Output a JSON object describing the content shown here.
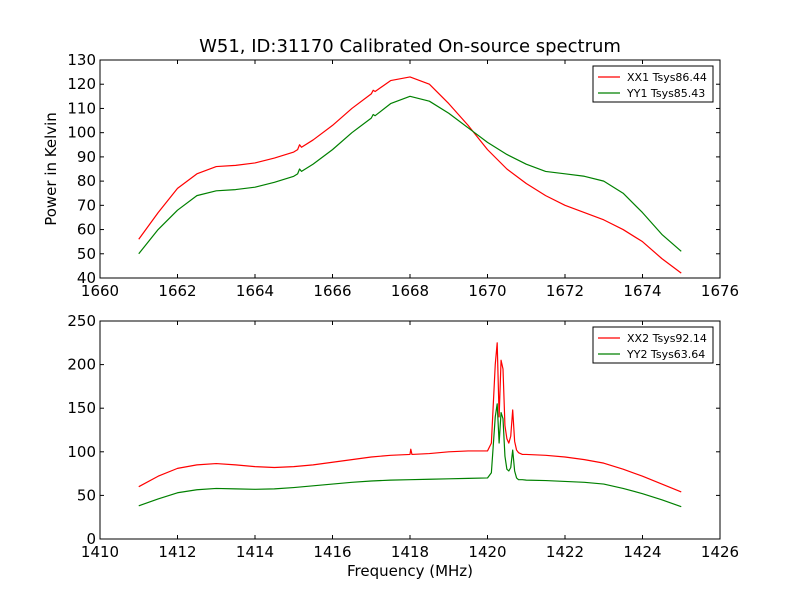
{
  "chart_data": [
    {
      "type": "line",
      "title": "W51, ID:31170 Calibrated On-source spectrum",
      "xlabel": "",
      "ylabel": "Power in Kelvin",
      "xlim": [
        1660,
        1676
      ],
      "ylim": [
        40,
        130
      ],
      "xticks": [
        1660,
        1662,
        1664,
        1666,
        1668,
        1670,
        1672,
        1674,
        1676
      ],
      "yticks": [
        40,
        50,
        60,
        70,
        80,
        90,
        100,
        110,
        120,
        130
      ],
      "grid": false,
      "legend_position": "top-right",
      "series": [
        {
          "name": "XX1 Tsys86.44",
          "color": "#ff0000",
          "x": [
            1661.0,
            1661.5,
            1662.0,
            1662.5,
            1663.0,
            1663.5,
            1664.0,
            1664.5,
            1665.0,
            1665.1,
            1665.15,
            1665.2,
            1665.5,
            1666.0,
            1666.5,
            1667.0,
            1667.05,
            1667.1,
            1667.5,
            1668.0,
            1668.5,
            1669.0,
            1669.5,
            1670.0,
            1670.5,
            1671.0,
            1671.5,
            1672.0,
            1672.5,
            1673.0,
            1673.5,
            1674.0,
            1674.5,
            1675.0
          ],
          "y": [
            56,
            67,
            77,
            83,
            86,
            86.5,
            87.5,
            89.5,
            92,
            93,
            95,
            94,
            97,
            103,
            110,
            116,
            117.5,
            117,
            121.5,
            123,
            120,
            112,
            103,
            93,
            85,
            79,
            74,
            70,
            67,
            64,
            60,
            55,
            48,
            42
          ]
        },
        {
          "name": "YY1 Tsys85.43",
          "color": "#008000",
          "x": [
            1661.0,
            1661.5,
            1662.0,
            1662.5,
            1663.0,
            1663.5,
            1664.0,
            1664.5,
            1665.0,
            1665.1,
            1665.15,
            1665.2,
            1665.5,
            1666.0,
            1666.5,
            1667.0,
            1667.05,
            1667.1,
            1667.5,
            1668.0,
            1668.5,
            1669.0,
            1669.5,
            1670.0,
            1670.5,
            1671.0,
            1671.5,
            1672.0,
            1672.5,
            1673.0,
            1673.5,
            1674.0,
            1674.5,
            1675.0
          ],
          "y": [
            50,
            60,
            68,
            74,
            76,
            76.5,
            77.5,
            79.5,
            82,
            83,
            85,
            84,
            87,
            93,
            100,
            106,
            107.5,
            107,
            112,
            115,
            113,
            108,
            102,
            96,
            91,
            87,
            84,
            83,
            82,
            80,
            75,
            67,
            58,
            51
          ]
        }
      ]
    },
    {
      "type": "line",
      "title": "",
      "xlabel": "Frequency (MHz)",
      "ylabel": "",
      "xlim": [
        1410,
        1426
      ],
      "ylim": [
        0,
        250
      ],
      "xticks": [
        1410,
        1412,
        1414,
        1416,
        1418,
        1420,
        1422,
        1424,
        1426
      ],
      "yticks": [
        0,
        50,
        100,
        150,
        200,
        250
      ],
      "grid": false,
      "legend_position": "top-right",
      "series": [
        {
          "name": "XX2 Tsys92.14",
          "color": "#ff0000",
          "x": [
            1411.0,
            1411.5,
            1412.0,
            1412.5,
            1413.0,
            1413.5,
            1414.0,
            1414.5,
            1415.0,
            1415.5,
            1416.0,
            1416.5,
            1417.0,
            1417.5,
            1418.0,
            1418.02,
            1418.05,
            1418.5,
            1419.0,
            1419.5,
            1420.0,
            1420.1,
            1420.2,
            1420.25,
            1420.3,
            1420.35,
            1420.4,
            1420.45,
            1420.5,
            1420.55,
            1420.6,
            1420.65,
            1420.7,
            1420.75,
            1420.8,
            1420.85,
            1420.9,
            1421.0,
            1421.5,
            1422.0,
            1422.5,
            1423.0,
            1423.5,
            1424.0,
            1424.5,
            1425.0
          ],
          "y": [
            60,
            72,
            81,
            85,
            86.5,
            85,
            83,
            82,
            83,
            85,
            88,
            91,
            94,
            96,
            97,
            103,
            97,
            98,
            100,
            101,
            101,
            110,
            200,
            225,
            140,
            205,
            195,
            130,
            115,
            110,
            118,
            148,
            112,
            102,
            99,
            98,
            97,
            97,
            96,
            94,
            91,
            87,
            80,
            72,
            63,
            54
          ]
        },
        {
          "name": "YY2 Tsys63.64",
          "color": "#008000",
          "x": [
            1411.0,
            1411.5,
            1412.0,
            1412.5,
            1413.0,
            1413.5,
            1414.0,
            1414.5,
            1415.0,
            1415.5,
            1416.0,
            1416.5,
            1417.0,
            1417.5,
            1418.0,
            1418.5,
            1419.0,
            1419.5,
            1420.0,
            1420.1,
            1420.2,
            1420.25,
            1420.3,
            1420.35,
            1420.4,
            1420.45,
            1420.5,
            1420.55,
            1420.6,
            1420.65,
            1420.7,
            1420.75,
            1420.8,
            1420.85,
            1420.9,
            1421.0,
            1421.5,
            1422.0,
            1422.5,
            1423.0,
            1423.5,
            1424.0,
            1424.5,
            1425.0
          ],
          "y": [
            38,
            46,
            53,
            56.5,
            58,
            57.5,
            57,
            57.5,
            59,
            61,
            63,
            65,
            66.5,
            67.5,
            68,
            68.5,
            69,
            69.5,
            70,
            76,
            140,
            155,
            110,
            145,
            138,
            95,
            80,
            78,
            82,
            102,
            78,
            70,
            68,
            68,
            68,
            67.5,
            67,
            66,
            65,
            63,
            58,
            52,
            45,
            37
          ]
        }
      ]
    }
  ]
}
